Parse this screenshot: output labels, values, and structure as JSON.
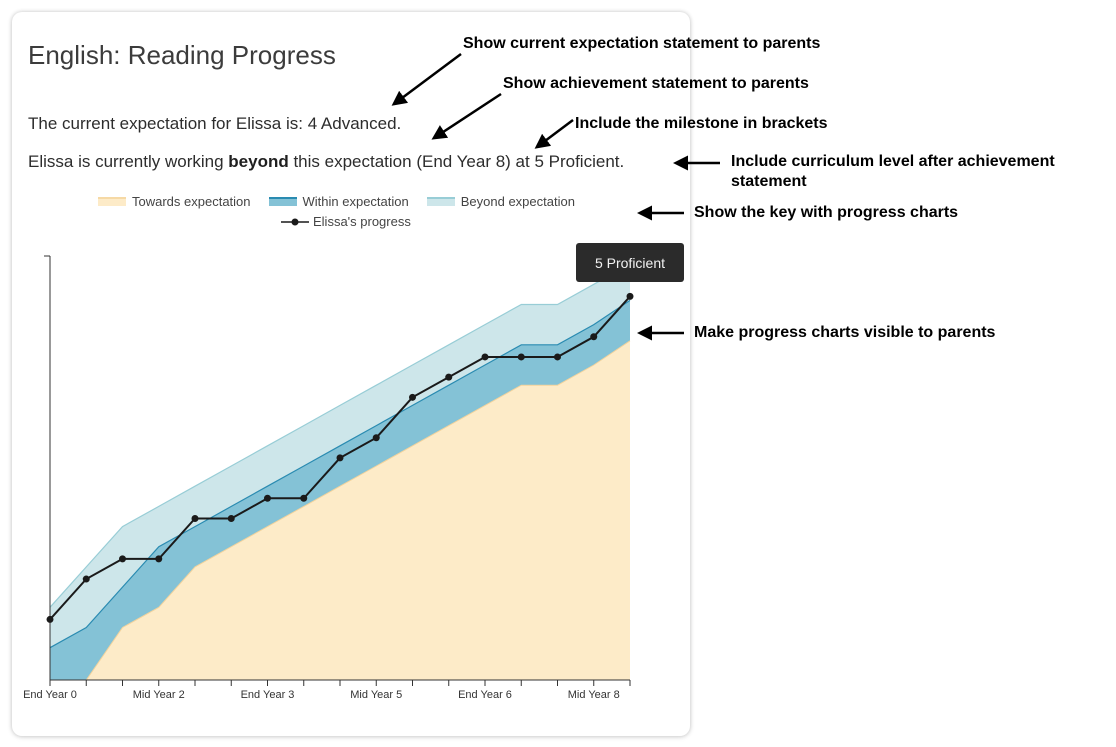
{
  "card": {
    "title": "English: Reading Progress",
    "expectation_prefix": "The current expectation for Elissa is: ",
    "expectation_value": "4 Advanced.",
    "achievement_prefix": "Elissa is currently working ",
    "achievement_bold": "beyond",
    "achievement_middle": " this expectation ",
    "milestone": "(End Year 8)",
    "achievement_suffix": " at 5 Proficient."
  },
  "legend": {
    "towards": "Towards expectation",
    "within": "Within expectation",
    "beyond": "Beyond expectation",
    "progress": "Elissa's progress"
  },
  "tooltip": {
    "text": "5 Proficient"
  },
  "annotations": {
    "current_expectation": "Show current expectation statement to parents",
    "achievement": "Show achievement statement to parents",
    "milestone": "Include the milestone in brackets",
    "curriculum_level": "Include curriculum level after achievement statement",
    "key": "Show the key with progress charts",
    "charts_visible": "Make progress charts visible to parents"
  },
  "colors": {
    "towards_fill": "#fdebc8",
    "within_fill": "#84c2d6",
    "within_line": "#2a8bb1",
    "beyond_fill": "#cde6ea",
    "beyond_line": "#98cdd6",
    "progress_line": "#1a1a1a"
  },
  "chart_data": {
    "type": "area",
    "x": [
      0,
      1,
      2,
      3,
      4,
      5,
      6,
      7,
      8,
      9,
      10,
      11,
      12,
      13,
      14,
      15,
      16
    ],
    "tick_labels": [
      "End Year 0",
      "",
      "",
      "Mid Year 2",
      "",
      "",
      "End Year 3",
      "",
      "",
      "Mid Year 5",
      "",
      "",
      "End Year 6",
      "",
      "",
      "Mid Year 8",
      ""
    ],
    "ylim": [
      0,
      10.5
    ],
    "series": [
      {
        "name": "Towards expectation",
        "lower": [
          0,
          0,
          0,
          0,
          0,
          0,
          0,
          0,
          0,
          0,
          0,
          0,
          0,
          0,
          0,
          0,
          0
        ],
        "upper": [
          0,
          0,
          1.3,
          1.8,
          2.8,
          3.3,
          3.8,
          4.3,
          4.8,
          5.3,
          5.8,
          6.3,
          6.8,
          7.3,
          7.3,
          7.8,
          8.4
        ]
      },
      {
        "name": "Within expectation",
        "upper": [
          0.8,
          1.3,
          2.3,
          3.3,
          3.8,
          4.3,
          4.8,
          5.3,
          5.8,
          6.3,
          6.8,
          7.3,
          7.8,
          8.3,
          8.3,
          8.8,
          9.4
        ]
      },
      {
        "name": "Beyond expectation",
        "upper": [
          1.8,
          2.8,
          3.8,
          4.3,
          4.8,
          5.3,
          5.8,
          6.3,
          6.8,
          7.3,
          7.8,
          8.3,
          8.8,
          9.3,
          9.3,
          9.8,
          10.3
        ]
      },
      {
        "name": "Elissa's progress",
        "values": [
          1.5,
          2.5,
          3.0,
          3.0,
          4.0,
          4.0,
          4.5,
          4.5,
          5.5,
          6.0,
          7.0,
          7.5,
          8.0,
          8.0,
          8.0,
          8.5,
          9.5
        ]
      }
    ]
  }
}
